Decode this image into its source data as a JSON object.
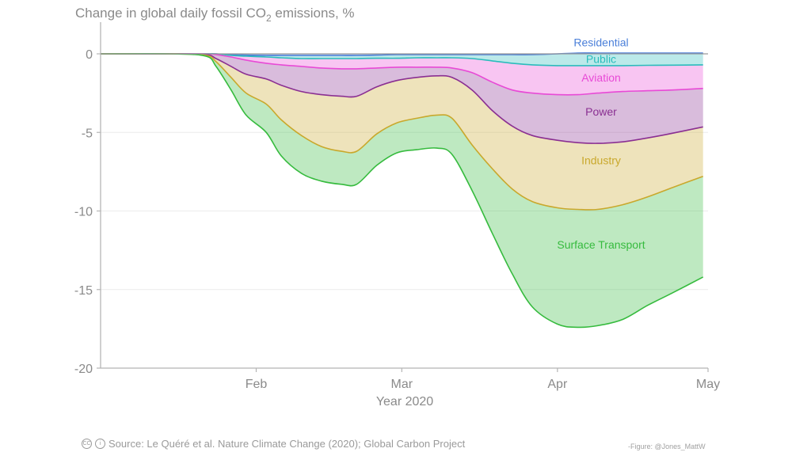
{
  "chart_data": {
    "type": "area",
    "title_main": "Change in global daily fossil CO",
    "title_sub": "2",
    "title_end": " emissions, %",
    "xlabel": "Year 2020",
    "ylim": [
      -20,
      0
    ],
    "y_ticks": [
      "0",
      "-5",
      "-10",
      "-15",
      "-20"
    ],
    "x_ticks": [
      "Feb",
      "Mar",
      "Apr",
      "May"
    ],
    "x": [
      "Jan 1",
      "Jan 15",
      "Jan 22",
      "Jan 24",
      "Jan 27",
      "Jan 30",
      "Feb 3",
      "Feb 6",
      "Feb 10",
      "Feb 14",
      "Feb 18",
      "Feb 21",
      "Feb 25",
      "Feb 29",
      "Mar 4",
      "Mar 8",
      "Mar 11",
      "Mar 15",
      "Mar 19",
      "Mar 23",
      "Mar 27",
      "Apr 1",
      "Apr 5",
      "Apr 9",
      "Apr 14",
      "Apr 19",
      "Apr 24",
      "Apr 30"
    ],
    "series": [
      {
        "name": "Residential",
        "color": "#4a7fd9",
        "values": [
          0,
          0,
          0,
          0,
          -0.05,
          -0.08,
          -0.1,
          -0.1,
          -0.1,
          -0.1,
          -0.1,
          -0.1,
          -0.08,
          -0.05,
          -0.05,
          -0.05,
          -0.05,
          -0.05,
          -0.05,
          -0.05,
          -0.05,
          0,
          0.05,
          0.05,
          0.05,
          0.05,
          0.05,
          0.05
        ]
      },
      {
        "name": "Public",
        "color": "#2bbcbc",
        "values": [
          0,
          0,
          0,
          0,
          -0.1,
          -0.15,
          -0.2,
          -0.25,
          -0.3,
          -0.3,
          -0.3,
          -0.3,
          -0.28,
          -0.28,
          -0.25,
          -0.25,
          -0.25,
          -0.3,
          -0.45,
          -0.6,
          -0.7,
          -0.75,
          -0.75,
          -0.75,
          -0.75,
          -0.73,
          -0.72,
          -0.7
        ]
      },
      {
        "name": "Aviation",
        "color": "#e84ad6",
        "values": [
          0,
          0,
          0,
          -0.05,
          -0.2,
          -0.4,
          -0.6,
          -0.7,
          -0.8,
          -0.9,
          -0.95,
          -0.95,
          -0.9,
          -0.85,
          -0.85,
          -0.85,
          -0.9,
          -1.2,
          -1.8,
          -2.3,
          -2.5,
          -2.6,
          -2.6,
          -2.5,
          -2.4,
          -2.35,
          -2.3,
          -2.2
        ]
      },
      {
        "name": "Power",
        "color": "#8a2f92",
        "values": [
          0,
          0,
          -0.05,
          -0.3,
          -0.8,
          -1.3,
          -1.6,
          -2.0,
          -2.4,
          -2.6,
          -2.7,
          -2.7,
          -2.1,
          -1.7,
          -1.5,
          -1.4,
          -1.5,
          -2.3,
          -3.6,
          -4.6,
          -5.2,
          -5.5,
          -5.65,
          -5.7,
          -5.6,
          -5.35,
          -5.05,
          -4.65
        ]
      },
      {
        "name": "Industry",
        "color": "#c9a82c",
        "values": [
          0,
          0,
          -0.1,
          -0.5,
          -1.5,
          -2.5,
          -3.2,
          -4.2,
          -5.2,
          -5.9,
          -6.2,
          -6.2,
          -5.1,
          -4.4,
          -4.1,
          -3.9,
          -4.1,
          -5.8,
          -7.3,
          -8.6,
          -9.4,
          -9.8,
          -9.9,
          -9.9,
          -9.6,
          -9.1,
          -8.5,
          -7.8
        ]
      },
      {
        "name": "Surface Transport",
        "color": "#36bb3e",
        "values": [
          0,
          0,
          -0.15,
          -0.8,
          -2.3,
          -3.9,
          -5.0,
          -6.5,
          -7.6,
          -8.1,
          -8.3,
          -8.3,
          -7.1,
          -6.3,
          -6.1,
          -6.0,
          -6.4,
          -8.7,
          -11.4,
          -14.0,
          -16.1,
          -17.2,
          -17.4,
          -17.3,
          -16.9,
          -16.0,
          -15.2,
          -14.2
        ]
      }
    ]
  },
  "footer": {
    "source": "Source: Le Quéré et al. Nature Climate Change (2020); Global Carbon Project",
    "cc_icon": "CC",
    "by_icon": "i",
    "credit": "-Figure: @Jones_MattW"
  }
}
